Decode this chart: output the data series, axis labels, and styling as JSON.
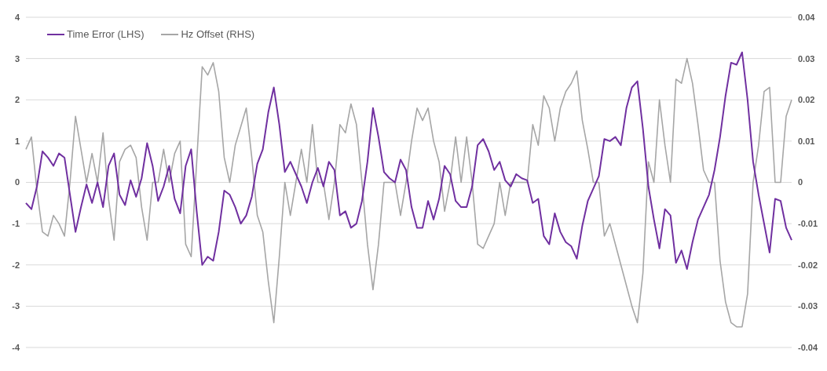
{
  "chart_data": {
    "type": "line",
    "categories": [
      null,
      null,
      null,
      null,
      null,
      null,
      null,
      null,
      null,
      null,
      null,
      null,
      null,
      null,
      null,
      null,
      null,
      null,
      null,
      null,
      null,
      null,
      null,
      null,
      null,
      null,
      null,
      null,
      null,
      null,
      null,
      null,
      null,
      null,
      null,
      null,
      null,
      null,
      null,
      null,
      null,
      null,
      null,
      null,
      null,
      null,
      null,
      null,
      null,
      null,
      null,
      null,
      null,
      null,
      null,
      null,
      null,
      null,
      null,
      null,
      null,
      null,
      null,
      null,
      null,
      null,
      null,
      null,
      null,
      null,
      null,
      null,
      null,
      null,
      null,
      null,
      null,
      null,
      null,
      null,
      null,
      null,
      null,
      null,
      null,
      null,
      null,
      null,
      null,
      null,
      null,
      null,
      null,
      null,
      null,
      null,
      null,
      null,
      null,
      null,
      null,
      null,
      null,
      null,
      null,
      null,
      null,
      null,
      null,
      null,
      null,
      null,
      null,
      null,
      null,
      null,
      null,
      null,
      null,
      null,
      null,
      null,
      null,
      null,
      null,
      null,
      null,
      null,
      null,
      null,
      null,
      null,
      null,
      null,
      null,
      null,
      null,
      null,
      null,
      null
    ],
    "series": [
      {
        "name": "Time Error (LHS)",
        "color": "#7030a0",
        "values": [
          -0.5,
          -0.65,
          -0.1,
          0.75,
          0.6,
          0.4,
          0.7,
          0.6,
          -0.3,
          -1.2,
          -0.6,
          -0.05,
          -0.5,
          0.0,
          -0.6,
          0.4,
          0.7,
          -0.3,
          -0.55,
          0.05,
          -0.35,
          0.1,
          0.95,
          0.4,
          -0.45,
          -0.1,
          0.4,
          -0.4,
          -0.75,
          0.4,
          0.8,
          -0.7,
          -2.0,
          -1.8,
          -1.9,
          -1.2,
          -0.2,
          -0.3,
          -0.6,
          -1.0,
          -0.8,
          -0.35,
          0.45,
          0.8,
          1.7,
          2.3,
          1.4,
          0.25,
          0.5,
          0.2,
          -0.1,
          -0.5,
          0.0,
          0.35,
          -0.1,
          0.5,
          0.3,
          -0.8,
          -0.7,
          -1.1,
          -1.0,
          -0.45,
          0.5,
          1.8,
          1.1,
          0.25,
          0.1,
          0.0,
          0.55,
          0.3,
          -0.6,
          -1.1,
          -1.1,
          -0.45,
          -0.9,
          -0.4,
          0.4,
          0.2,
          -0.45,
          -0.6,
          -0.6,
          -0.1,
          0.9,
          1.05,
          0.75,
          0.3,
          0.5,
          0.05,
          -0.1,
          0.2,
          0.1,
          0.05,
          -0.5,
          -0.4,
          -1.3,
          -1.5,
          -0.75,
          -1.2,
          -1.45,
          -1.55,
          -1.85,
          -1.05,
          -0.45,
          -0.15,
          0.15,
          1.05,
          1.0,
          1.1,
          0.9,
          1.8,
          2.3,
          2.45,
          1.3,
          -0.1,
          -0.9,
          -1.6,
          -0.65,
          -0.8,
          -1.95,
          -1.65,
          -2.1,
          -1.45,
          -0.9,
          -0.6,
          -0.3,
          0.3,
          1.1,
          2.1,
          2.9,
          2.85,
          3.15,
          2.0,
          0.5,
          -0.3,
          -1.0,
          -1.7,
          -0.4,
          -0.45,
          -1.1,
          -1.4
        ]
      },
      {
        "name": "Hz Offset (RHS)",
        "color": "#a6a6a6",
        "axis": "y2",
        "values": [
          0.008,
          0.011,
          -0.002,
          -0.012,
          -0.013,
          -0.008,
          -0.01,
          -0.013,
          0.0,
          0.016,
          0.008,
          0.0,
          0.007,
          0.0,
          0.012,
          -0.004,
          -0.014,
          0.005,
          0.008,
          0.009,
          0.006,
          -0.006,
          -0.014,
          0.0,
          0.0,
          0.008,
          0.0,
          0.007,
          0.01,
          -0.015,
          -0.018,
          0.005,
          0.028,
          0.026,
          0.029,
          0.022,
          0.006,
          0.0,
          0.009,
          0.0135,
          0.018,
          0.006,
          -0.008,
          -0.012,
          -0.024,
          -0.034,
          -0.018,
          0.0,
          -0.008,
          0.0,
          0.008,
          0.0,
          0.014,
          0.0,
          0.0,
          -0.009,
          0.0,
          0.014,
          0.012,
          0.019,
          0.014,
          0.0,
          -0.015,
          -0.026,
          -0.015,
          0.0,
          0.0,
          0.0,
          -0.008,
          0.0,
          0.01,
          0.018,
          0.015,
          0.018,
          0.01,
          0.005,
          -0.007,
          0.0,
          0.011,
          0.0,
          0.011,
          0.0,
          -0.015,
          -0.016,
          -0.013,
          -0.01,
          0.0,
          -0.008,
          0.0,
          0.0,
          0.0,
          0.0,
          0.014,
          0.009,
          0.021,
          0.018,
          0.01,
          0.018,
          0.022,
          0.024,
          0.027,
          0.015,
          0.008,
          0.0,
          0.0,
          -0.013,
          -0.01,
          -0.015,
          -0.02,
          -0.025,
          -0.03,
          -0.034,
          -0.022,
          0.005,
          0.0,
          0.02,
          0.009,
          0.0,
          0.025,
          0.024,
          0.03,
          0.024,
          0.014,
          0.003,
          0.0,
          0.0,
          -0.019,
          -0.029,
          -0.034,
          -0.035,
          -0.035,
          -0.027,
          0.0,
          0.009,
          0.022,
          0.023,
          0.0,
          0.0,
          0.016,
          0.02
        ]
      }
    ],
    "ylim": [
      -4,
      4
    ],
    "yticks": [
      -4,
      -3,
      -2,
      -1,
      0,
      1,
      2,
      3,
      4
    ],
    "y2lim": [
      -0.04,
      0.04
    ],
    "y2ticks": [
      -0.04,
      -0.03,
      -0.02,
      -0.01,
      0,
      0.01,
      0.02,
      0.03,
      0.04
    ],
    "grid": "y",
    "legend": "top left",
    "tick_labels": "y",
    "line_style": "solid",
    "marker": "none"
  }
}
